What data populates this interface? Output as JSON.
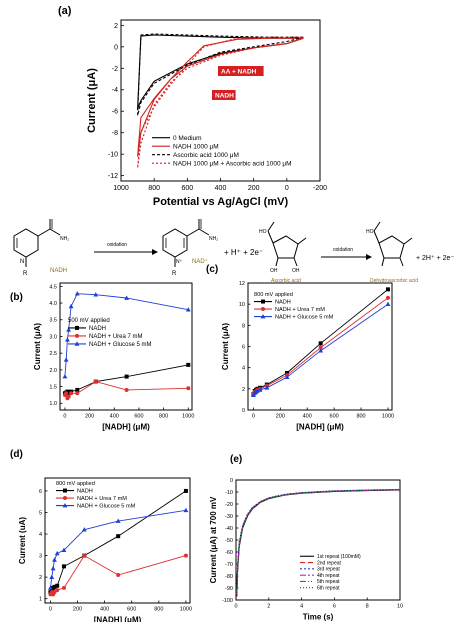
{
  "chart_data": [
    {
      "panel": "(a)",
      "type": "line",
      "xlabel": "Potential vs Ag/AgCl (mV)",
      "ylabel": "Current (μA)",
      "xlim": [
        1000,
        -200
      ],
      "ylim": [
        -12.5,
        2.5
      ],
      "x_reversed": true,
      "x_ticks": [
        1000,
        800,
        600,
        400,
        200,
        0,
        -200
      ],
      "y_ticks": [
        2,
        0,
        -2,
        -4,
        -6,
        -8,
        -10,
        -12
      ],
      "x_tick_labels": [
        "1000",
        "800",
        "600",
        "400",
        "200",
        "0",
        "-200"
      ],
      "y_tick_labels": [
        "2",
        "0",
        "-2",
        "-4",
        "-6",
        "-8",
        "-10",
        "-12"
      ],
      "annotations": [
        "AA + NADH",
        "NADH"
      ],
      "legend_position": "bottom-right",
      "series": [
        {
          "name": "0 Medium",
          "color": "#000000",
          "dash": "solid",
          "x": [
            -100,
            100,
            400,
            600,
            800,
            880,
            900,
            880,
            800,
            600,
            400,
            200,
            0,
            -100
          ],
          "y": [
            0.8,
            0.8,
            0.9,
            1.0,
            1.1,
            1.0,
            -5.8,
            -5.0,
            -3.2,
            -1.6,
            -0.6,
            -0.1,
            0.3,
            0.8
          ]
        },
        {
          "name": "NADH 1000 μM",
          "color": "#d42020",
          "dash": "solid",
          "x": [
            -100,
            100,
            300,
            500,
            600,
            700,
            800,
            880,
            900,
            880,
            800,
            700,
            600,
            400,
            200,
            0,
            -100
          ],
          "y": [
            0.8,
            0.8,
            0.7,
            0.1,
            -1.4,
            -3.0,
            -4.8,
            -6.6,
            -10.2,
            -8.0,
            -4.9,
            -3.0,
            -1.8,
            -0.7,
            -0.1,
            0.3,
            0.8
          ]
        },
        {
          "name": "Ascorbic acid 1000 μM",
          "color": "#000000",
          "dash": "3,2",
          "x": [
            -100,
            100,
            400,
            600,
            800,
            880,
            900,
            880,
            800,
            600,
            400,
            200,
            0,
            -100
          ],
          "y": [
            0.9,
            0.9,
            1.0,
            1.1,
            1.2,
            1.1,
            -6.4,
            -5.2,
            -3.4,
            -1.7,
            -0.5,
            0.0,
            0.5,
            0.9
          ]
        },
        {
          "name": "NADH 1000 μM + Ascorbic acid 1000 μM",
          "color": "#d42020",
          "dash": "2,2",
          "x": [
            -100,
            100,
            300,
            500,
            600,
            700,
            800,
            880,
            900,
            880,
            800,
            700,
            600,
            400,
            200,
            0,
            -100
          ],
          "y": [
            0.9,
            0.9,
            0.8,
            0.0,
            -1.7,
            -3.5,
            -5.6,
            -7.9,
            -11.3,
            -9.0,
            -5.4,
            -3.3,
            -2.0,
            -0.8,
            -0.1,
            0.3,
            0.9
          ]
        }
      ]
    },
    {
      "panel": "(b)",
      "type": "line",
      "xlabel": "[NADH] (μM)",
      "ylabel": "Current (μA)",
      "xlim": [
        -40,
        1030
      ],
      "ylim": [
        0.8,
        4.6
      ],
      "x_ticks": [
        0,
        200,
        400,
        600,
        800,
        1000
      ],
      "y_ticks": [
        1.0,
        1.5,
        2.0,
        2.5,
        3.0,
        3.5,
        4.0,
        4.5
      ],
      "x_tick_labels": [
        "0",
        "200",
        "400",
        "600",
        "800",
        "1000"
      ],
      "y_tick_labels": [
        "1.0",
        "1.5",
        "2.0",
        "2.5",
        "3.0",
        "3.5",
        "4.0",
        "4.5"
      ],
      "legend_title": "500 mV applied",
      "series": [
        {
          "name": "NADH",
          "color": "#000000",
          "marker": "square",
          "x": [
            0,
            10,
            20,
            30,
            50,
            100,
            250,
            500,
            1000
          ],
          "y": [
            1.3,
            1.32,
            1.35,
            1.3,
            1.35,
            1.4,
            1.65,
            1.8,
            2.15
          ]
        },
        {
          "name": "NADH + Urea 7 mM",
          "color": "#e03030",
          "marker": "circle",
          "x": [
            0,
            10,
            20,
            30,
            50,
            100,
            250,
            500,
            1000
          ],
          "y": [
            1.25,
            1.3,
            1.15,
            1.2,
            1.3,
            1.3,
            1.65,
            1.4,
            1.45
          ]
        },
        {
          "name": "NADH + Glucose 5 mM",
          "color": "#1f3fd6",
          "marker": "triangle",
          "x": [
            0,
            10,
            20,
            30,
            50,
            100,
            250,
            500,
            1000
          ],
          "y": [
            1.8,
            2.3,
            2.9,
            3.2,
            3.9,
            4.28,
            4.25,
            4.15,
            3.8
          ]
        }
      ]
    },
    {
      "panel": "(c)",
      "type": "line",
      "xlabel": "[NADH] (μM)",
      "ylabel": "Current (μA)",
      "xlim": [
        -40,
        1030
      ],
      "ylim": [
        0,
        12
      ],
      "x_ticks": [
        0,
        200,
        400,
        600,
        800,
        1000
      ],
      "y_ticks": [
        0,
        2,
        4,
        6,
        8,
        10,
        12
      ],
      "x_tick_labels": [
        "0",
        "200",
        "400",
        "600",
        "800",
        "1000"
      ],
      "y_tick_labels": [
        "0",
        "2",
        "4",
        "6",
        "8",
        "10",
        "12"
      ],
      "legend_title": "800 mV applied",
      "series": [
        {
          "name": "NADH",
          "color": "#000000",
          "marker": "square",
          "x": [
            0,
            10,
            20,
            30,
            50,
            100,
            250,
            500,
            1000
          ],
          "y": [
            1.5,
            1.8,
            1.9,
            2.0,
            2.1,
            2.4,
            3.5,
            6.3,
            11.4
          ]
        },
        {
          "name": "NADH + Urea 7 mM",
          "color": "#e03030",
          "marker": "circle",
          "x": [
            0,
            10,
            20,
            30,
            50,
            100,
            250,
            500,
            1000
          ],
          "y": [
            1.5,
            1.7,
            1.8,
            1.9,
            2.0,
            2.3,
            3.3,
            5.9,
            10.6
          ]
        },
        {
          "name": "NADH + Glucose 5 mM",
          "color": "#1f3fd6",
          "marker": "triangle",
          "x": [
            0,
            10,
            20,
            30,
            50,
            100,
            250,
            500,
            1000
          ],
          "y": [
            1.4,
            1.6,
            1.7,
            1.8,
            1.9,
            2.1,
            3.1,
            5.6,
            10.0
          ]
        }
      ]
    },
    {
      "panel": "(d)",
      "type": "line",
      "xlabel": "[NADH] (μM)",
      "ylabel": "Current (uA)",
      "xlim": [
        -40,
        1030
      ],
      "ylim": [
        0.8,
        6.6
      ],
      "x_ticks": [
        0,
        200,
        400,
        600,
        800,
        1000
      ],
      "y_ticks": [
        1,
        2,
        3,
        4,
        5,
        6
      ],
      "x_tick_labels": [
        "0",
        "200",
        "400",
        "600",
        "800",
        "1000"
      ],
      "y_tick_labels": [
        "1",
        "2",
        "3",
        "4",
        "5",
        "6"
      ],
      "legend_title": "800 mV applied",
      "series": [
        {
          "name": "NADH",
          "color": "#000000",
          "marker": "square",
          "x": [
            0,
            10,
            20,
            30,
            50,
            100,
            250,
            500,
            1000
          ],
          "y": [
            1.3,
            1.4,
            1.5,
            1.55,
            1.6,
            2.5,
            3.0,
            3.9,
            6.0
          ]
        },
        {
          "name": "NADH + Urea 7 mM",
          "color": "#e03030",
          "marker": "circle",
          "x": [
            0,
            10,
            20,
            30,
            50,
            100,
            250,
            500,
            1000
          ],
          "y": [
            1.2,
            1.3,
            1.2,
            1.3,
            1.4,
            1.5,
            3.0,
            2.1,
            3.0
          ]
        },
        {
          "name": "NADH + Glucose 5 mM",
          "color": "#1f3fd6",
          "marker": "triangle",
          "x": [
            0,
            10,
            20,
            30,
            50,
            100,
            250,
            500,
            1000
          ],
          "y": [
            1.5,
            2.0,
            2.4,
            2.8,
            3.1,
            3.25,
            4.2,
            4.6,
            5.1
          ]
        }
      ]
    },
    {
      "panel": "(e)",
      "type": "line",
      "xlabel": "Time (s)",
      "ylabel": "Current (μA) at 700 mV",
      "xlim": [
        0,
        10
      ],
      "ylim": [
        -100,
        0
      ],
      "x_ticks": [
        0,
        2,
        4,
        6,
        8,
        10
      ],
      "y_ticks": [
        0,
        -10,
        -20,
        -30,
        -40,
        -50,
        -60,
        -70,
        -80,
        -90,
        -100
      ],
      "x_tick_labels": [
        "0",
        "2",
        "4",
        "6",
        "8",
        "10"
      ],
      "y_tick_labels": [
        "0",
        "-10",
        "-20",
        "-30",
        "-40",
        "-50",
        "-60",
        "-70",
        "-80",
        "-90",
        "-100"
      ],
      "legend_position": "bottom-right",
      "series": [
        {
          "name": "1st repeat (100mM)",
          "color": "#000000",
          "dash": "solid",
          "x": [
            0.05,
            0.1,
            0.2,
            0.4,
            0.7,
            1,
            1.5,
            2,
            3,
            4,
            6,
            8,
            10
          ],
          "y": [
            -97,
            -75,
            -55,
            -40,
            -30,
            -24,
            -18.5,
            -15.5,
            -12.5,
            -11,
            -9.5,
            -8.8,
            -8.3
          ]
        },
        {
          "name": "2nd repeat",
          "color": "#d42020",
          "dash": "5,3",
          "x": [
            0.05,
            0.1,
            0.2,
            0.4,
            0.7,
            1,
            1.5,
            2,
            3,
            4,
            6,
            8,
            10
          ],
          "y": [
            -96,
            -74,
            -54,
            -39.5,
            -29.5,
            -23.7,
            -18.3,
            -15.3,
            -12.4,
            -10.9,
            -9.4,
            -8.7,
            -8.2
          ]
        },
        {
          "name": "3rd repeat",
          "color": "#1f3fd6",
          "dash": "2,2",
          "x": [
            0.05,
            0.1,
            0.2,
            0.4,
            0.7,
            1,
            1.5,
            2,
            3,
            4,
            6,
            8,
            10
          ],
          "y": [
            -95,
            -73,
            -53,
            -39,
            -29,
            -23.4,
            -18.1,
            -15.1,
            -12.2,
            -10.8,
            -9.3,
            -8.6,
            -8.1
          ]
        },
        {
          "name": "4th repeat",
          "color": "#c020c0",
          "dash": "6,2,2,2",
          "x": [
            0.05,
            0.1,
            0.2,
            0.4,
            0.7,
            1,
            1.5,
            2,
            3,
            4,
            6,
            8,
            10
          ],
          "y": [
            -95,
            -72,
            -52.5,
            -38.5,
            -28.8,
            -23.2,
            -18,
            -15,
            -12.1,
            -10.7,
            -9.2,
            -8.5,
            -8.0
          ]
        },
        {
          "name": "5th repeat",
          "color": "#1a8c3a",
          "dash": "6,2,1,2,1,2",
          "x": [
            0.05,
            0.1,
            0.2,
            0.4,
            0.7,
            1,
            1.5,
            2,
            3,
            4,
            6,
            8,
            10
          ],
          "y": [
            -94,
            -72,
            -52,
            -38.2,
            -28.6,
            -23,
            -17.9,
            -14.9,
            -12,
            -10.6,
            -9.1,
            -8.4,
            -7.9
          ]
        },
        {
          "name": "6th repeat",
          "color": "#20207a",
          "dash": "1,2",
          "x": [
            0.05,
            0.1,
            0.2,
            0.4,
            0.7,
            1,
            1.5,
            2,
            3,
            4,
            6,
            8,
            10
          ],
          "y": [
            -94,
            -71,
            -51.5,
            -38,
            -28.4,
            -22.8,
            -17.8,
            -14.8,
            -11.9,
            -10.5,
            -9.0,
            -8.3,
            -7.8
          ]
        }
      ]
    }
  ],
  "scheme": {
    "nadh_label": "NADH",
    "oxidation_1": "oxidation",
    "nad_label": "NAD⁺",
    "products_1": "+ H⁺ + 2e⁻",
    "aa_label": "Ascorbic acid",
    "oxidation_2": "oxidation",
    "dha_label": "Dehydroascorbic acid",
    "products_2": "+ 2H⁺ + 2e⁻",
    "conh2": "NH₂",
    "r": "R",
    "n": "N",
    "n_plus": "N⁺",
    "oh": "OH",
    "ho": "HO"
  }
}
